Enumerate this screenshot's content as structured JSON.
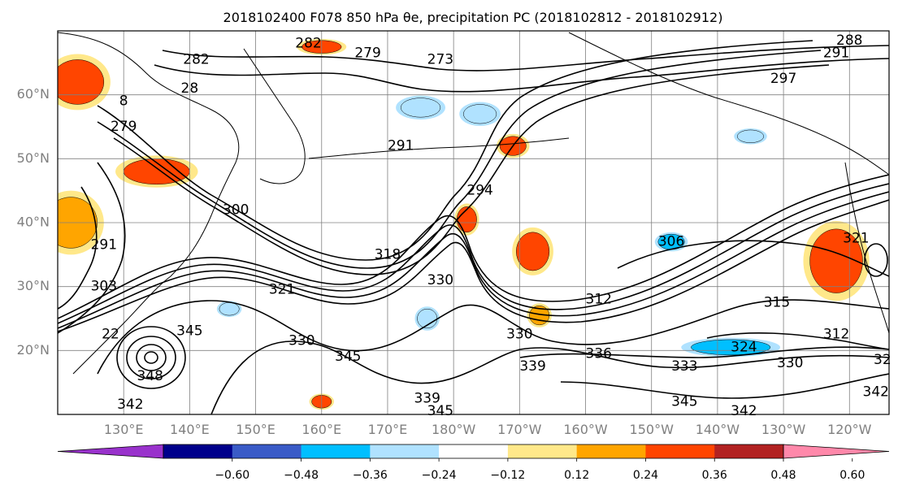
{
  "figure": {
    "title": "2018102400 F078 850 hPa θe, precipitation PC (2018102812 - 2018102912)"
  },
  "map": {
    "lat_ticks": [
      "60°N",
      "50°N",
      "40°N",
      "30°N",
      "20°N"
    ],
    "lat_values": [
      60,
      50,
      40,
      30,
      20
    ],
    "lon_ticks": [
      "130°E",
      "140°E",
      "150°E",
      "160°E",
      "170°E",
      "180°W",
      "170°W",
      "160°W",
      "150°W",
      "140°W",
      "130°W",
      "120°W"
    ],
    "lon_values": [
      130,
      140,
      150,
      160,
      170,
      180,
      190,
      200,
      210,
      220,
      230,
      240
    ],
    "lon_range": [
      120,
      246
    ],
    "lat_range": [
      10,
      70
    ],
    "contour_labels": [
      {
        "text": "282",
        "lon": 158,
        "lat": 68
      },
      {
        "text": "279",
        "lon": 167,
        "lat": 66.5
      },
      {
        "text": "273",
        "lon": 178,
        "lat": 65.5
      },
      {
        "text": "288",
        "lon": 240,
        "lat": 68.5
      },
      {
        "text": "291",
        "lon": 238,
        "lat": 66.5
      },
      {
        "text": "297",
        "lon": 230,
        "lat": 62.5
      },
      {
        "text": "282",
        "lon": 141,
        "lat": 65.5
      },
      {
        "text": "28",
        "lon": 140,
        "lat": 61
      },
      {
        "text": "8",
        "lon": 130,
        "lat": 59
      },
      {
        "text": "279",
        "lon": 130,
        "lat": 55
      },
      {
        "text": "291",
        "lon": 172,
        "lat": 52
      },
      {
        "text": "294",
        "lon": 184,
        "lat": 45
      },
      {
        "text": "300",
        "lon": 147,
        "lat": 42
      },
      {
        "text": "291",
        "lon": 127,
        "lat": 36.5
      },
      {
        "text": "303",
        "lon": 127,
        "lat": 30
      },
      {
        "text": "318",
        "lon": 170,
        "lat": 35
      },
      {
        "text": "321",
        "lon": 154,
        "lat": 29.5
      },
      {
        "text": "330",
        "lon": 178,
        "lat": 31
      },
      {
        "text": "306",
        "lon": 213,
        "lat": 37
      },
      {
        "text": "312",
        "lon": 202,
        "lat": 28
      },
      {
        "text": "315",
        "lon": 229,
        "lat": 27.5
      },
      {
        "text": "321",
        "lon": 241,
        "lat": 37.5
      },
      {
        "text": "22",
        "lon": 128,
        "lat": 22.5
      },
      {
        "text": "345",
        "lon": 140,
        "lat": 23
      },
      {
        "text": "330",
        "lon": 157,
        "lat": 21.5
      },
      {
        "text": "345",
        "lon": 164,
        "lat": 19
      },
      {
        "text": "330",
        "lon": 190,
        "lat": 22.5
      },
      {
        "text": "336",
        "lon": 202,
        "lat": 19.5
      },
      {
        "text": "339",
        "lon": 192,
        "lat": 17.5
      },
      {
        "text": "333",
        "lon": 215,
        "lat": 17.5
      },
      {
        "text": "324",
        "lon": 224,
        "lat": 20.5
      },
      {
        "text": "312",
        "lon": 238,
        "lat": 22.5
      },
      {
        "text": "330",
        "lon": 231,
        "lat": 18
      },
      {
        "text": "348",
        "lon": 134,
        "lat": 16
      },
      {
        "text": "342",
        "lon": 131,
        "lat": 11.5
      },
      {
        "text": "339",
        "lon": 176,
        "lat": 12.5
      },
      {
        "text": "345",
        "lon": 178,
        "lat": 10.5
      },
      {
        "text": "345",
        "lon": 215,
        "lat": 12
      },
      {
        "text": "342",
        "lon": 224,
        "lat": 10.5
      },
      {
        "text": "342",
        "lon": 244,
        "lat": 13.5
      },
      {
        "text": "32",
        "lon": 245,
        "lat": 18.5
      }
    ],
    "contour_color": "#000000",
    "grid_color": "#808080"
  },
  "colorbar": {
    "tick_labels": [
      "−0.60",
      "−0.48",
      "−0.36",
      "−0.24",
      "−0.12",
      "0.12",
      "0.24",
      "0.36",
      "0.48",
      "0.60"
    ],
    "tick_values": [
      -0.6,
      -0.48,
      -0.36,
      -0.24,
      -0.12,
      0.12,
      0.24,
      0.36,
      0.48,
      0.6
    ],
    "colors": [
      "#9932cc",
      "#00008b",
      "#3a5bc7",
      "#00bfff",
      "#b0e2ff",
      "#ffffff",
      "#ffe88a",
      "#ffa500",
      "#ff4500",
      "#b22222",
      "#ff88aa"
    ],
    "extend": "both"
  },
  "precip_patches": [
    {
      "lon": 123,
      "lat": 62,
      "rx": 4,
      "ry": 3.5,
      "level": "0.36"
    },
    {
      "lon": 122,
      "lat": 40,
      "rx": 4,
      "ry": 4,
      "level": "0.24"
    },
    {
      "lon": 135,
      "lat": 48,
      "rx": 5,
      "ry": 2,
      "level": "0.36"
    },
    {
      "lon": 160,
      "lat": 67.5,
      "rx": 3,
      "ry": 1,
      "level": "0.36"
    },
    {
      "lon": 175,
      "lat": 58,
      "rx": 3,
      "ry": 1.5,
      "level": "-0.24"
    },
    {
      "lon": 184,
      "lat": 57,
      "rx": 2.5,
      "ry": 1.5,
      "level": "-0.24"
    },
    {
      "lon": 189,
      "lat": 52,
      "rx": 2,
      "ry": 1.5,
      "level": "0.36"
    },
    {
      "lon": 182,
      "lat": 40.5,
      "rx": 1.5,
      "ry": 2,
      "level": "0.36"
    },
    {
      "lon": 192,
      "lat": 35.5,
      "rx": 2.5,
      "ry": 3,
      "level": "0.36"
    },
    {
      "lon": 222,
      "lat": 20.5,
      "rx": 6,
      "ry": 1.2,
      "level": "-0.36"
    },
    {
      "lon": 146,
      "lat": 26.5,
      "rx": 1.5,
      "ry": 1,
      "level": "-0.24"
    },
    {
      "lon": 176,
      "lat": 25,
      "rx": 1.5,
      "ry": 1.5,
      "level": "-0.24"
    },
    {
      "lon": 193,
      "lat": 25.5,
      "rx": 1.5,
      "ry": 1.5,
      "level": "0.24"
    },
    {
      "lon": 213,
      "lat": 37,
      "rx": 2,
      "ry": 1.2,
      "level": "-0.36"
    },
    {
      "lon": 238,
      "lat": 34,
      "rx": 4,
      "ry": 5,
      "level": "0.36"
    },
    {
      "lon": 160,
      "lat": 12,
      "rx": 1.5,
      "ry": 1,
      "level": "0.36"
    },
    {
      "lon": 225,
      "lat": 53.5,
      "rx": 2,
      "ry": 1,
      "level": "-0.24"
    }
  ]
}
